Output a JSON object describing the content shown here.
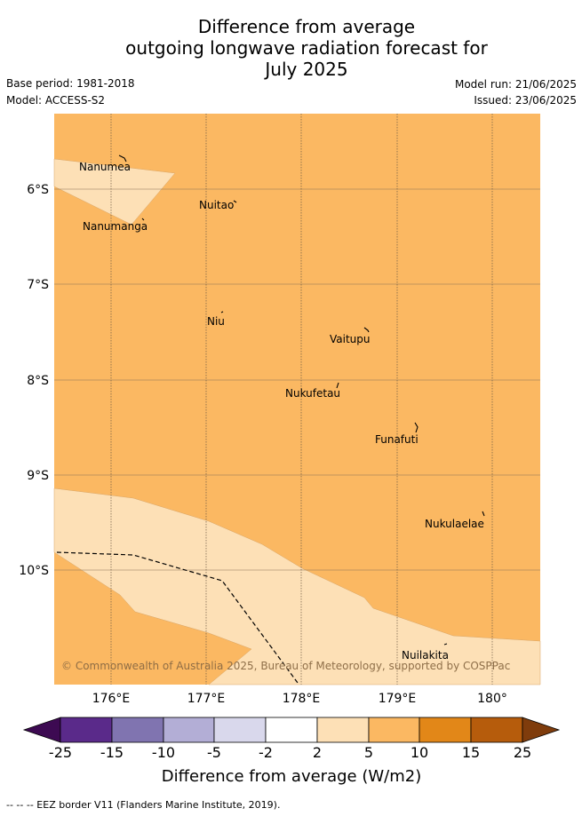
{
  "title": {
    "line1": "Difference from average",
    "line2": "outgoing longwave radiation forecast for",
    "line3": "July 2025"
  },
  "meta": {
    "base_period": "Base period: 1981-2018",
    "model": "Model: ACCESS-S2",
    "model_run": "Model run: 21/06/2025",
    "issued": "Issued: 23/06/2025"
  },
  "map": {
    "lat_labels": [
      "6°S",
      "7°S",
      "8°S",
      "9°S",
      "10°S"
    ],
    "lon_labels": [
      "176°E",
      "177°E",
      "178°E",
      "179°E",
      "180°"
    ],
    "places": [
      "Nanumea",
      "Nuitao",
      "Nanumanga",
      "Niu",
      "Vaitupu",
      "Nukufetau",
      "Funafuti",
      "Nukulaelae",
      "Nuilakita"
    ],
    "copyright": "© Commonwealth of Australia 2025, Bureau of Meteorology, supported by COSPPac",
    "background_class": "5 to 10",
    "colors": {
      "orange_5_10": "#fbb862",
      "peach_2_5": "#fde0b6"
    }
  },
  "colorbar": {
    "ticks": [
      "-25",
      "-15",
      "-10",
      "-5",
      "-2",
      "2",
      "5",
      "10",
      "15",
      "25"
    ],
    "colors": [
      "#3d0a52",
      "#5a2a8a",
      "#8074b0",
      "#b3aed6",
      "#d9d8ec",
      "#ffffff",
      "#fde0b6",
      "#fbb862",
      "#e28718",
      "#b65c0c",
      "#7f3c0c"
    ],
    "label": "Difference from average (W/m2)"
  },
  "footer": "-- -- -- EEZ border V11 (Flanders Marine Institute, 2019)."
}
